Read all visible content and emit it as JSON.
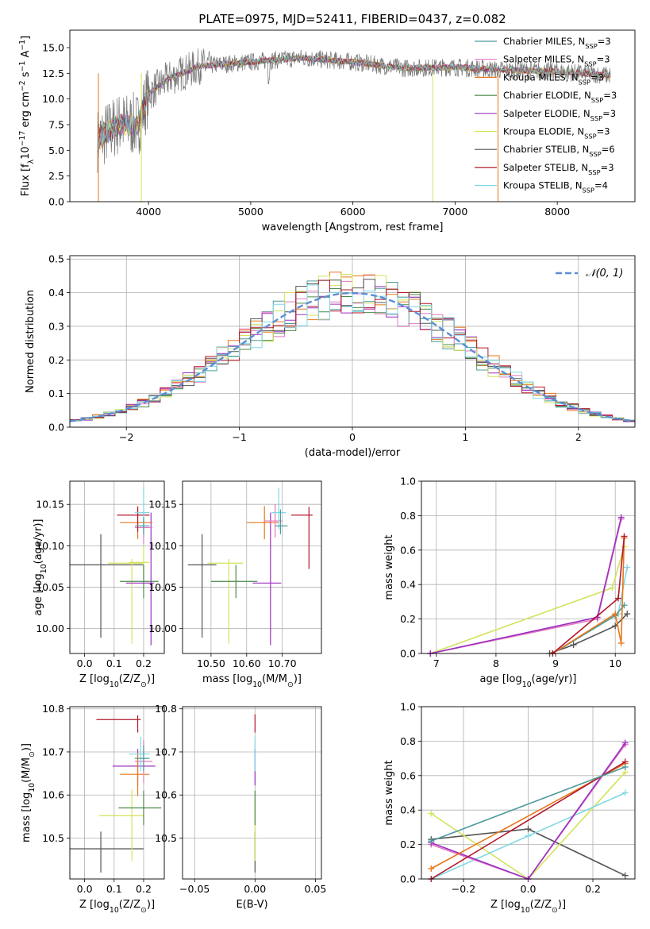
{
  "figure_title": "PLATE=0975, MJD=52411, FIBERID=0437, z=0.082",
  "colors": {
    "Chabrier MILES": "#4c9a9a",
    "Salpeter MILES": "#e377c2",
    "Kroupa MILES": "#e8781a",
    "Chabrier ELODIE": "#4a8a4a",
    "Salpeter ELODIE": "#9b30c0",
    "Kroupa ELODIE": "#d4e35a",
    "Chabrier STELIB": "#555555",
    "Salpeter STELIB": "#b2182b",
    "Kroupa STELIB": "#7fd8e6",
    "gauss": "#5b8ed6",
    "spectrum": "#777777"
  },
  "chart_data": [
    {
      "id": "spectrum",
      "type": "line",
      "xlabel": "wavelength [Angstrom, rest frame]",
      "ylabel": "Flux [f_λ 10^-17 erg cm^-2 s^-1 A^-1]",
      "xlim": [
        3230,
        8760
      ],
      "ylim": [
        0,
        16.7
      ],
      "xticks": [
        4000,
        5000,
        6000,
        7000,
        8000
      ],
      "yticks": [
        0.0,
        2.5,
        5.0,
        7.5,
        10.0,
        12.5,
        15.0
      ],
      "legend_position": "upper-right",
      "legend": [
        "Chabrier MILES, N_SSP=3",
        "Salpeter MILES, N_SSP=3",
        "Kroupa MILES, N_SSP=3",
        "Chabrier ELODIE, N_SSP=3",
        "Salpeter ELODIE, N_SSP=3",
        "Kroupa ELODIE, N_SSP=3",
        "Chabrier STELIB, N_SSP=6",
        "Salpeter STELIB, N_SSP=3",
        "Kroupa STELIB, N_SSP=4"
      ],
      "continuum_points": [
        [
          3500,
          6
        ],
        [
          3700,
          7.5
        ],
        [
          3900,
          7.5
        ],
        [
          4000,
          10.5
        ],
        [
          4200,
          12
        ],
        [
          4500,
          13.2
        ],
        [
          5000,
          13.6
        ],
        [
          5500,
          14
        ],
        [
          6000,
          13.6
        ],
        [
          6500,
          13
        ],
        [
          7000,
          13.1
        ],
        [
          7500,
          12.8
        ],
        [
          8000,
          12.7
        ],
        [
          8500,
          12.3
        ]
      ],
      "grid": false
    },
    {
      "id": "residuals",
      "type": "step",
      "xlabel": "(data-model)/error",
      "ylabel": "Normed distribution",
      "xlim": [
        -2.5,
        2.5
      ],
      "ylim": [
        0,
        0.51
      ],
      "xticks": [
        -2,
        -1,
        0,
        1,
        2
      ],
      "yticks": [
        0.0,
        0.1,
        0.2,
        0.3,
        0.4,
        0.5
      ],
      "legend_label": "N(0,1)",
      "legend_position": "upper-right",
      "bin_width": 0.1,
      "grid": true
    },
    {
      "id": "age-vs-Z",
      "type": "errorbar",
      "xlabel": "Z [log10(Z/Z⊙)]",
      "ylabel": "age  [log10(age/yr)]",
      "xlim": [
        -0.05,
        0.27
      ],
      "ylim": [
        9.97,
        10.178
      ],
      "xticks": [
        0.0,
        0.1,
        0.2
      ],
      "yticks": [
        10.0,
        10.05,
        10.1,
        10.15
      ],
      "grid": true,
      "points": [
        {
          "model": "Chabrier STELIB",
          "x": 0.055,
          "xerr": [
            0.105,
            0.145
          ],
          "y": 10.077,
          "yerr": [
            0.088,
            0.037
          ]
        },
        {
          "model": "Kroupa ELODIE",
          "x": 0.16,
          "xerr": [
            0.08,
            0.04
          ],
          "y": 10.079,
          "yerr": [
            0.097,
            0.005
          ]
        },
        {
          "model": "Kroupa ELODIE",
          "x": 0.2,
          "xerr": [
            0.05,
            0.02
          ],
          "y": 10.08,
          "yerr": [
            0.02,
            0.02
          ]
        },
        {
          "model": "Chabrier ELODIE",
          "x": 0.2,
          "xerr": [
            0.08,
            0.05
          ],
          "y": 10.057,
          "yerr": [
            0.02,
            0.02
          ]
        },
        {
          "model": "Salpeter ELODIE",
          "x": 0.225,
          "xerr": [
            0.085,
            0.01
          ],
          "y": 10.055,
          "yerr": [
            0.075,
            0.085
          ]
        },
        {
          "model": "Kroupa MILES",
          "x": 0.18,
          "xerr": [
            0.06,
            0.05
          ],
          "y": 10.128,
          "yerr": [
            0.02,
            0.02
          ]
        },
        {
          "model": "Salpeter MILES",
          "x": 0.2,
          "xerr": [
            0.03,
            0.03
          ],
          "y": 10.122,
          "yerr": [
            0.02,
            0.02
          ]
        },
        {
          "model": "Salpeter STELIB",
          "x": 0.18,
          "xerr": [
            0.07,
            0.04
          ],
          "y": 10.137,
          "yerr": [
            0.02,
            0.01
          ]
        },
        {
          "model": "Kroupa STELIB",
          "x": 0.2,
          "xerr": [
            0.03,
            0.02
          ],
          "y": 10.14,
          "yerr": [
            0.02,
            0.03
          ]
        },
        {
          "model": "Chabrier MILES",
          "x": 0.2,
          "xerr": [
            0.03,
            0.02
          ],
          "y": 10.124,
          "yerr": [
            0.01,
            0.01
          ]
        }
      ]
    },
    {
      "id": "age-vs-mass",
      "type": "errorbar",
      "xlabel": "mass [log10(M/M⊙)]",
      "ylabel": "",
      "xlim": [
        10.42,
        10.81
      ],
      "ylim": [
        9.97,
        10.178
      ],
      "xticks": [
        10.5,
        10.6,
        10.7
      ],
      "yticks": [
        10.0,
        10.05,
        10.1,
        10.15
      ],
      "grid": true,
      "points": [
        {
          "model": "Chabrier STELIB",
          "x": 10.475,
          "xerr": [
            0.04,
            0.04
          ],
          "y": 10.077,
          "yerr": [
            0.088,
            0.037
          ]
        },
        {
          "model": "Kroupa ELODIE",
          "x": 10.55,
          "xerr": [
            0.06,
            0.04
          ],
          "y": 10.079,
          "yerr": [
            0.097,
            0.005
          ]
        },
        {
          "model": "Chabrier ELODIE",
          "x": 10.57,
          "xerr": [
            0.07,
            0.06
          ],
          "y": 10.057,
          "yerr": [
            0.02,
            0.02
          ]
        },
        {
          "model": "Salpeter ELODIE",
          "x": 10.667,
          "xerr": [
            0.05,
            0.03
          ],
          "y": 10.055,
          "yerr": [
            0.075,
            0.085
          ]
        },
        {
          "model": "Kroupa MILES",
          "x": 10.65,
          "xerr": [
            0.05,
            0.04
          ],
          "y": 10.128,
          "yerr": [
            0.02,
            0.02
          ]
        },
        {
          "model": "Salpeter MILES",
          "x": 10.68,
          "xerr": [
            0.03,
            0.02
          ],
          "y": 10.13,
          "yerr": [
            0.02,
            0.02
          ]
        },
        {
          "model": "Salpeter STELIB",
          "x": 10.775,
          "xerr": [
            0.05,
            0.01
          ],
          "y": 10.137,
          "yerr": [
            0.065,
            0.01
          ]
        },
        {
          "model": "Kroupa STELIB",
          "x": 10.69,
          "xerr": [
            0.02,
            0.02
          ],
          "y": 10.14,
          "yerr": [
            0.02,
            0.03
          ]
        },
        {
          "model": "Chabrier MILES",
          "x": 10.695,
          "xerr": [
            0.015,
            0.02
          ],
          "y": 10.124,
          "yerr": [
            0.01,
            0.02
          ]
        }
      ]
    },
    {
      "id": "weight-vs-age",
      "type": "line",
      "xlabel": "age  [log10(age/yr)]",
      "ylabel": "mass weight",
      "xlim": [
        6.75,
        10.33
      ],
      "ylim": [
        0,
        1.0
      ],
      "xticks": [
        7,
        8,
        9,
        10
      ],
      "yticks": [
        0.0,
        0.2,
        0.4,
        0.6,
        0.8,
        1.0
      ],
      "grid": true,
      "series": [
        {
          "model": "Kroupa ELODIE",
          "x": [
            6.9,
            9.95,
            10.15
          ],
          "y": [
            0.0,
            0.38,
            0.62
          ]
        },
        {
          "model": "Salpeter MILES",
          "x": [
            6.9,
            9.7,
            10.1
          ],
          "y": [
            0.0,
            0.2,
            0.78
          ]
        },
        {
          "model": "Salpeter ELODIE",
          "x": [
            6.9,
            9.7,
            10.1
          ],
          "y": [
            0.0,
            0.21,
            0.79
          ]
        },
        {
          "model": "Chabrier STELIB",
          "x": [
            8.9,
            9.3,
            10.0,
            10.2
          ],
          "y": [
            0.0,
            0.05,
            0.16,
            0.23
          ]
        },
        {
          "model": "Kroupa STELIB",
          "x": [
            8.95,
            10.05,
            10.2
          ],
          "y": [
            0.0,
            0.23,
            0.5
          ]
        },
        {
          "model": "Chabrier MILES",
          "x": [
            8.95,
            10.0,
            10.15
          ],
          "y": [
            0.0,
            0.22,
            0.28
          ]
        },
        {
          "model": "Kroupa MILES",
          "x": [
            8.95,
            10.0,
            10.1,
            10.15
          ],
          "y": [
            0.0,
            0.23,
            0.06,
            0.67
          ]
        },
        {
          "model": "Salpeter STELIB",
          "x": [
            8.95,
            10.05,
            10.15
          ],
          "y": [
            0.0,
            0.32,
            0.68
          ]
        }
      ]
    },
    {
      "id": "mass-vs-Z",
      "type": "errorbar",
      "xlabel": "Z [log10(Z/Z⊙)]",
      "ylabel": "mass [log10(M/M⊙)]",
      "xlim": [
        -0.05,
        0.27
      ],
      "ylim": [
        10.405,
        10.805
      ],
      "xticks": [
        0.0,
        0.1,
        0.2
      ],
      "yticks": [
        10.5,
        10.6,
        10.7,
        10.8
      ],
      "grid": true,
      "points": [
        {
          "model": "Chabrier STELIB",
          "x": 0.055,
          "xerr": [
            0.105,
            0.145
          ],
          "y": 10.475,
          "yerr": [
            0.055,
            0.04
          ]
        },
        {
          "model": "Kroupa ELODIE",
          "x": 0.16,
          "xerr": [
            0.11,
            0.04
          ],
          "y": 10.552,
          "yerr": [
            0.105,
            0.06
          ]
        },
        {
          "model": "Chabrier ELODIE",
          "x": 0.2,
          "xerr": [
            0.085,
            0.06
          ],
          "y": 10.57,
          "yerr": [
            0.04,
            0.04
          ]
        },
        {
          "model": "Salpeter ELODIE",
          "x": 0.18,
          "xerr": [
            0.085,
            0.06
          ],
          "y": 10.667,
          "yerr": [
            0.045,
            0.04
          ]
        },
        {
          "model": "Kroupa MILES",
          "x": 0.18,
          "xerr": [
            0.06,
            0.04
          ],
          "y": 10.648,
          "yerr": [
            0.05,
            0.05
          ]
        },
        {
          "model": "Salpeter MILES",
          "x": 0.2,
          "xerr": [
            0.03,
            0.03
          ],
          "y": 10.678,
          "yerr": [
            0.05,
            0.05
          ]
        },
        {
          "model": "Salpeter STELIB",
          "x": 0.18,
          "xerr": [
            0.14,
            0.01
          ],
          "y": 10.775,
          "yerr": [
            0.03,
            0.01
          ]
        },
        {
          "model": "Kroupa STELIB",
          "x": 0.19,
          "xerr": [
            0.04,
            0.03
          ],
          "y": 10.695,
          "yerr": [
            0.04,
            0.04
          ]
        },
        {
          "model": "Chabrier MILES",
          "x": 0.2,
          "xerr": [
            0.03,
            0.02
          ],
          "y": 10.685,
          "yerr": [
            0.03,
            0.03
          ]
        }
      ]
    },
    {
      "id": "mass-vs-ebv",
      "type": "errorbar",
      "xlabel": "E(B-V)",
      "ylabel": "",
      "xlim": [
        -0.06,
        0.055
      ],
      "ylim": [
        10.405,
        10.805
      ],
      "xticks": [
        -0.05,
        0.0,
        0.05
      ],
      "yticks": [
        10.5,
        10.6,
        10.7,
        10.8
      ],
      "grid": true,
      "points": [
        {
          "model": "Chabrier STELIB",
          "x": 0.0,
          "y": 10.475,
          "yerr": [
            0.055,
            0.04
          ]
        },
        {
          "model": "Kroupa ELODIE",
          "x": 0.0,
          "y": 10.552,
          "yerr": [
            0.105,
            0.04
          ]
        },
        {
          "model": "Chabrier ELODIE",
          "x": 0.0,
          "y": 10.57,
          "yerr": [
            0.04,
            0.04
          ]
        },
        {
          "model": "Salpeter ELODIE",
          "x": 0.0,
          "y": 10.667,
          "yerr": [
            0.045,
            0.04
          ]
        },
        {
          "model": "Kroupa STELIB",
          "x": 0.0,
          "y": 10.695,
          "yerr": [
            0.04,
            0.04
          ]
        },
        {
          "model": "Salpeter STELIB",
          "x": 0.0,
          "y": 10.775,
          "yerr": [
            0.03,
            0.012
          ]
        }
      ]
    },
    {
      "id": "weight-vs-Z",
      "type": "line",
      "xlabel": "Z [log10(Z/Z⊙)]",
      "ylabel": "mass weight",
      "xlim": [
        -0.33,
        0.33
      ],
      "ylim": [
        0,
        1.0
      ],
      "xticks": [
        -0.2,
        0.0,
        0.2
      ],
      "yticks": [
        0.0,
        0.2,
        0.4,
        0.6,
        0.8,
        1.0
      ],
      "grid": true,
      "series": [
        {
          "model": "Chabrier STELIB",
          "x": [
            -0.3,
            0.0,
            0.3
          ],
          "y": [
            0.23,
            0.29,
            0.02
          ]
        },
        {
          "model": "Kroupa ELODIE",
          "x": [
            -0.3,
            0.0,
            0.3
          ],
          "y": [
            0.38,
            0.0,
            0.62
          ]
        },
        {
          "model": "Kroupa STELIB",
          "x": [
            -0.3,
            0.0,
            0.3
          ],
          "y": [
            0.0,
            0.25,
            0.5
          ]
        },
        {
          "model": "Salpeter MILES",
          "x": [
            -0.3,
            0.0,
            0.3
          ],
          "y": [
            0.2,
            0.0,
            0.78
          ]
        },
        {
          "model": "Salpeter ELODIE",
          "x": [
            -0.3,
            0.0,
            0.3
          ],
          "y": [
            0.21,
            0.0,
            0.79
          ]
        },
        {
          "model": "Kroupa MILES",
          "x": [
            -0.3,
            0.3
          ],
          "y": [
            0.06,
            0.67
          ]
        },
        {
          "model": "Salpeter STELIB",
          "x": [
            -0.3,
            0.3
          ],
          "y": [
            0.0,
            0.68
          ]
        },
        {
          "model": "Chabrier MILES",
          "x": [
            -0.3,
            0.3
          ],
          "y": [
            0.22,
            0.65
          ]
        }
      ]
    }
  ]
}
